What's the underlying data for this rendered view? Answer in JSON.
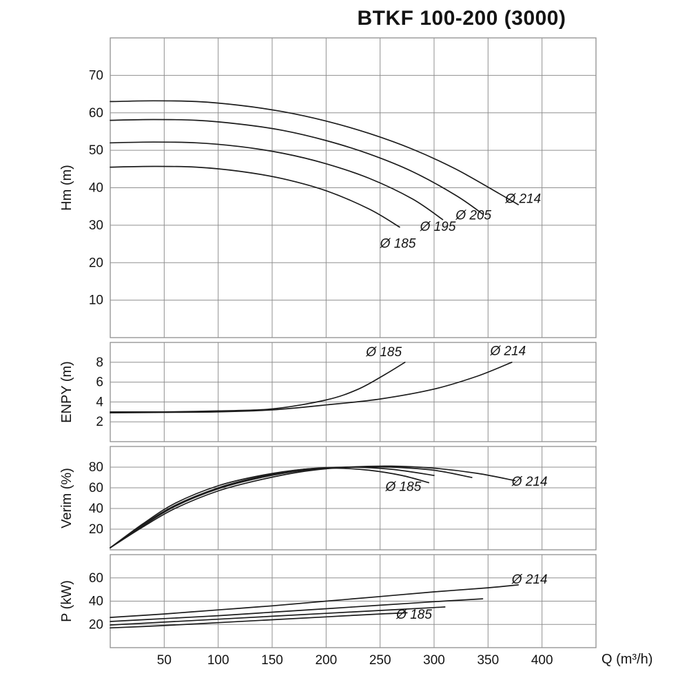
{
  "title": "BTKF 100-200 (3000)",
  "x_axis": {
    "label": "Q (m³/h)",
    "lim": [
      0,
      450
    ],
    "ticks": [
      50,
      100,
      150,
      200,
      250,
      300,
      350,
      400
    ]
  },
  "colors": {
    "curve": "#1c1c1c",
    "grid": "#8f8f8f",
    "text": "#141414"
  },
  "chart_data": [
    {
      "id": "hm",
      "type": "line",
      "ylabel": "Hm (m)",
      "ylim": [
        0,
        80
      ],
      "yticks": [
        10,
        20,
        30,
        40,
        50,
        60,
        70
      ],
      "series": [
        {
          "name": "Ø 214",
          "x": [
            0,
            40,
            80,
            120,
            160,
            200,
            240,
            280,
            320,
            360,
            378
          ],
          "y": [
            63,
            63.2,
            63,
            62,
            60.3,
            57.8,
            54.5,
            50.3,
            45,
            38.5,
            35.5
          ]
        },
        {
          "name": "Ø 205",
          "x": [
            0,
            40,
            80,
            120,
            160,
            200,
            240,
            280,
            320,
            345
          ],
          "y": [
            58,
            58.2,
            58,
            57,
            55.3,
            52.6,
            49,
            44.3,
            38,
            33
          ]
        },
        {
          "name": "Ø 195",
          "x": [
            0,
            40,
            80,
            120,
            160,
            200,
            240,
            280,
            308
          ],
          "y": [
            52,
            52.2,
            52,
            51,
            49.2,
            46.4,
            42.5,
            37,
            31.5
          ]
        },
        {
          "name": "Ø 185",
          "x": [
            0,
            40,
            80,
            120,
            160,
            200,
            240,
            268
          ],
          "y": [
            45.5,
            45.7,
            45.5,
            44.4,
            42.4,
            39.2,
            34.3,
            29.5
          ]
        }
      ],
      "labels": [
        {
          "text": "Ø 185",
          "x": 250,
          "y": 24
        },
        {
          "text": "Ø 195",
          "x": 287,
          "y": 28.5
        },
        {
          "text": "Ø 205",
          "x": 320,
          "y": 31.5
        },
        {
          "text": "Ø 214",
          "x": 366,
          "y": 36
        }
      ]
    },
    {
      "id": "enpy",
      "type": "line",
      "ylabel": "ENPY (m)",
      "ylim": [
        0,
        10
      ],
      "yticks": [
        2,
        4,
        6,
        8
      ],
      "series": [
        {
          "name": "Ø 185",
          "x": [
            0,
            50,
            100,
            150,
            200,
            230,
            255,
            273
          ],
          "y": [
            3,
            3,
            3.1,
            3.3,
            4.2,
            5.3,
            6.8,
            8
          ]
        },
        {
          "name": "Ø 214",
          "x": [
            0,
            50,
            100,
            150,
            200,
            250,
            300,
            340,
            372
          ],
          "y": [
            2.9,
            2.95,
            3,
            3.2,
            3.7,
            4.3,
            5.3,
            6.6,
            8
          ]
        }
      ],
      "labels": [
        {
          "text": "Ø 185",
          "x": 237,
          "y": 8.6
        },
        {
          "text": "Ø 214",
          "x": 352,
          "y": 8.7
        }
      ]
    },
    {
      "id": "verim",
      "type": "line",
      "ylabel": "Verim (%)",
      "ylim": [
        0,
        100
      ],
      "yticks": [
        20,
        40,
        60,
        80
      ],
      "series": [
        {
          "name": "Ø 214",
          "x": [
            0,
            30,
            60,
            100,
            140,
            180,
            220,
            260,
            300,
            340,
            375
          ],
          "y": [
            2,
            22,
            40,
            57,
            68,
            76,
            80,
            81,
            79,
            74,
            67
          ]
        },
        {
          "name": "Ø 205",
          "x": [
            0,
            30,
            60,
            100,
            140,
            180,
            220,
            260,
            300,
            335
          ],
          "y": [
            2,
            23,
            42,
            59,
            70,
            77,
            80,
            80,
            77,
            70
          ]
        },
        {
          "name": "Ø 195",
          "x": [
            0,
            30,
            60,
            100,
            140,
            180,
            220,
            260,
            300
          ],
          "y": [
            2,
            24,
            43,
            60,
            71,
            78,
            80,
            78,
            72
          ]
        },
        {
          "name": "Ø 185",
          "x": [
            0,
            30,
            60,
            100,
            140,
            180,
            210,
            240,
            270,
            295
          ],
          "y": [
            2,
            25,
            45,
            62,
            72,
            78,
            79,
            77,
            72,
            65
          ]
        }
      ],
      "labels": [
        {
          "text": "Ø 185",
          "x": 255,
          "y": 57
        },
        {
          "text": "Ø 214",
          "x": 372,
          "y": 62
        }
      ]
    },
    {
      "id": "p",
      "type": "line",
      "ylabel": "P (kW)",
      "ylim": [
        0,
        80
      ],
      "yticks": [
        20,
        40,
        60
      ],
      "series": [
        {
          "name": "Ø 214",
          "x": [
            0,
            50,
            100,
            150,
            200,
            250,
            300,
            350,
            378
          ],
          "y": [
            26,
            29,
            32.5,
            36,
            40,
            44,
            48,
            51.5,
            54
          ]
        },
        {
          "name": "Ø 205",
          "x": [
            0,
            50,
            100,
            150,
            200,
            250,
            300,
            345
          ],
          "y": [
            22.5,
            25,
            27.5,
            30.5,
            33.5,
            36.5,
            39.5,
            42
          ]
        },
        {
          "name": "Ø 195",
          "x": [
            0,
            50,
            100,
            150,
            200,
            250,
            300,
            310
          ],
          "y": [
            19.5,
            22,
            24.5,
            27,
            29.5,
            32,
            34.5,
            35
          ]
        },
        {
          "name": "Ø 185",
          "x": [
            0,
            50,
            100,
            150,
            200,
            250,
            275
          ],
          "y": [
            17,
            19,
            21.5,
            24,
            26.5,
            29,
            30
          ]
        }
      ],
      "labels": [
        {
          "text": "Ø 214",
          "x": 372,
          "y": 55
        },
        {
          "text": "Ø 185",
          "x": 265,
          "y": 25
        }
      ]
    }
  ]
}
